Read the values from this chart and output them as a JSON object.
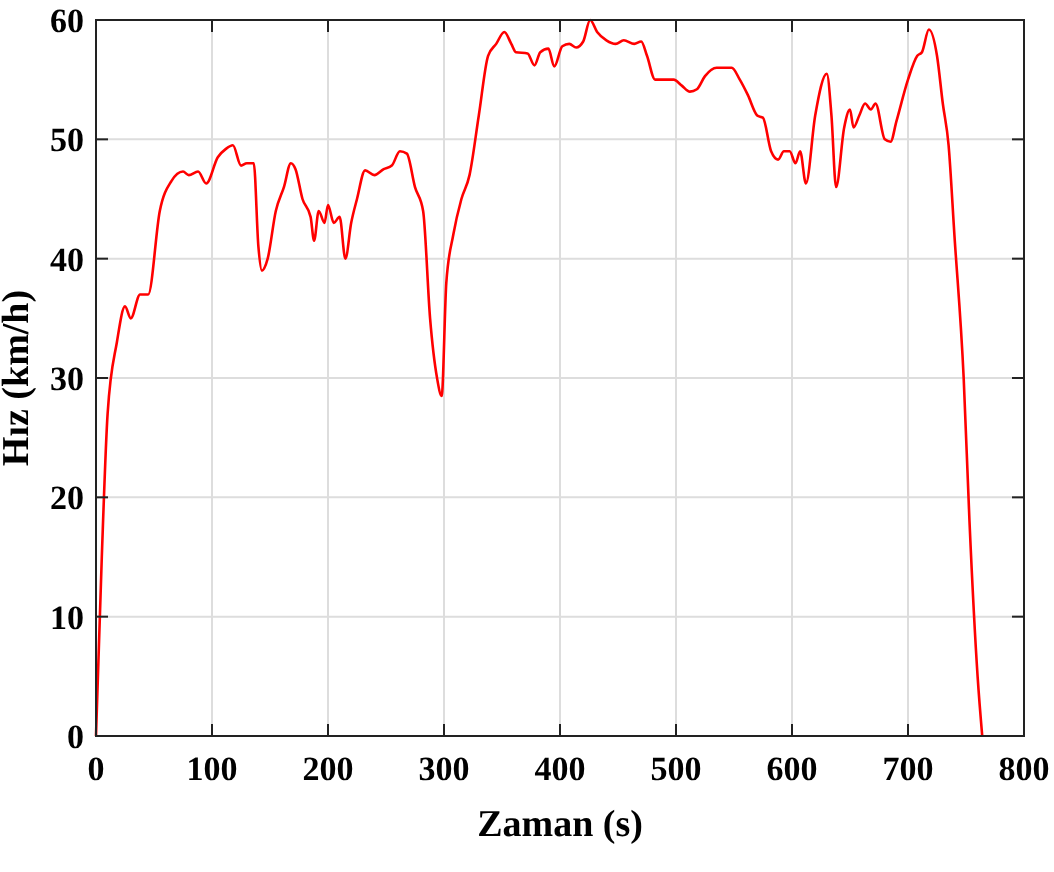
{
  "chart_data": {
    "type": "line",
    "xlabel": "Zaman (s)",
    "ylabel": "Hız (km/h)",
    "xlim": [
      0,
      800
    ],
    "ylim": [
      0,
      60
    ],
    "xticks": [
      0,
      100,
      200,
      300,
      400,
      500,
      600,
      700,
      800
    ],
    "yticks": [
      0,
      10,
      20,
      30,
      40,
      50,
      60
    ],
    "grid": true,
    "line_style": "solid",
    "series": [
      {
        "color": "#ff0000",
        "x": [
          0,
          5,
          10,
          18,
          25,
          30,
          38,
          45,
          55,
          65,
          75,
          80,
          88,
          95,
          105,
          112,
          118,
          125,
          130,
          136,
          140,
          143,
          148,
          155,
          162,
          168,
          172,
          178,
          185,
          188,
          192,
          197,
          200,
          205,
          210,
          215,
          220,
          225,
          232,
          240,
          248,
          255,
          262,
          268,
          275,
          282,
          288,
          294,
          298,
          302,
          308,
          315,
          322,
          330,
          338,
          345,
          352,
          358,
          362,
          372,
          378,
          383,
          390,
          395,
          402,
          408,
          414,
          420,
          426,
          432,
          440,
          448,
          455,
          464,
          470,
          475,
          482,
          490,
          498,
          505,
          512,
          518,
          525,
          535,
          548,
          555,
          562,
          570,
          575,
          582,
          588,
          593,
          598,
          603,
          607,
          612,
          620,
          630,
          634,
          638,
          645,
          650,
          653,
          658,
          663,
          668,
          672,
          680,
          685,
          690,
          700,
          708,
          712,
          718,
          725,
          730,
          735,
          740,
          748,
          753,
          760,
          764
        ],
        "values": [
          0,
          15,
          27,
          33,
          36,
          35,
          37,
          37,
          44,
          46.5,
          47.3,
          47,
          47.3,
          46.3,
          48.5,
          49.2,
          49.5,
          47.8,
          48,
          48,
          41,
          39,
          40,
          44,
          46,
          48,
          47.5,
          45,
          43.5,
          41.5,
          44,
          43,
          44.5,
          43,
          43.5,
          40,
          43,
          45,
          47.4,
          47,
          47.5,
          47.8,
          49,
          48.8,
          46,
          44,
          35,
          30,
          28.5,
          38,
          42,
          45,
          47,
          52,
          57,
          58,
          59,
          58,
          57.3,
          57.2,
          56.2,
          57.3,
          57.6,
          56.1,
          57.8,
          58,
          57.7,
          58.2,
          60,
          59,
          58.3,
          58,
          58.3,
          58,
          58.2,
          57,
          55,
          55,
          55,
          54.5,
          54,
          54.2,
          55.3,
          56,
          56,
          55,
          53.7,
          52,
          51.8,
          49,
          48.3,
          49,
          49,
          48,
          49,
          46.3,
          52,
          55.5,
          52,
          46,
          51,
          52.5,
          51,
          52,
          53,
          52.5,
          53,
          50,
          49.8,
          51.5,
          55,
          57,
          57.3,
          59.2,
          57,
          53,
          49.5,
          42,
          30,
          18,
          5,
          0
        ]
      }
    ]
  }
}
